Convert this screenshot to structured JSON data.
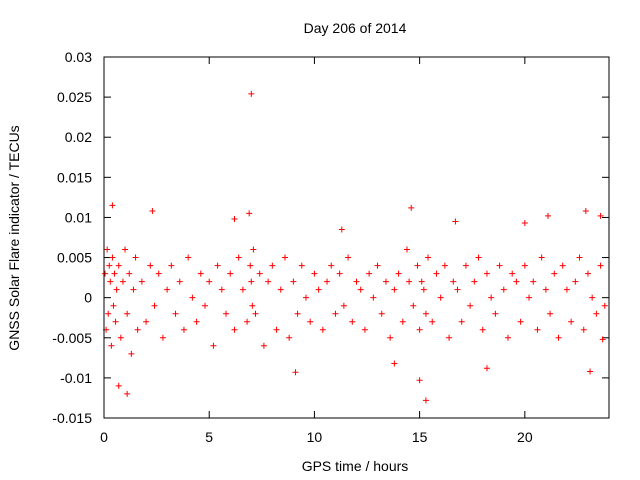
{
  "chart_data": {
    "type": "scatter",
    "title": "Day 206 of 2014",
    "xlabel": "GPS time / hours",
    "ylabel": "GNSS Solar Flare indicator / TECUs",
    "xlim": [
      0,
      24
    ],
    "ylim": [
      -0.015,
      0.03
    ],
    "xticks": [
      0,
      5,
      10,
      15,
      20
    ],
    "xtick_labels": [
      "0",
      "5",
      "10",
      "15",
      "20"
    ],
    "yticks": [
      -0.015,
      -0.01,
      -0.005,
      0,
      0.005,
      0.01,
      0.015,
      0.02,
      0.025,
      0.03
    ],
    "ytick_labels": [
      "-0.015",
      "-0.01",
      "-0.005",
      "0",
      "0.005",
      "0.01",
      "0.015",
      "0.02",
      "0.025",
      "0.03"
    ],
    "grid": false,
    "marker": "plus",
    "color": "#ff0000",
    "series": [
      {
        "name": "GNSS Solar Flare indicator",
        "x": [
          0.05,
          0.1,
          0.15,
          0.2,
          0.25,
          0.3,
          0.35,
          0.4,
          0.45,
          0.5,
          0.55,
          0.6,
          0.7,
          0.8,
          0.9,
          1.0,
          1.1,
          1.2,
          1.3,
          1.4,
          1.5,
          1.6,
          1.8,
          2.0,
          2.2,
          2.4,
          2.6,
          2.8,
          3.0,
          3.2,
          3.4,
          3.6,
          3.8,
          4.0,
          4.2,
          4.4,
          4.6,
          4.8,
          5.0,
          5.2,
          5.4,
          5.6,
          5.8,
          6.0,
          6.2,
          6.4,
          6.6,
          6.8,
          6.95,
          7.0,
          7.05,
          7.1,
          7.2,
          7.4,
          7.6,
          7.8,
          8.0,
          8.2,
          8.4,
          8.6,
          8.8,
          9.0,
          9.2,
          9.4,
          9.6,
          9.8,
          10.0,
          10.2,
          10.4,
          10.6,
          10.8,
          11.0,
          11.2,
          11.4,
          11.6,
          11.8,
          12.0,
          12.2,
          12.4,
          12.6,
          12.8,
          13.0,
          13.2,
          13.4,
          13.6,
          13.8,
          14.0,
          14.2,
          14.4,
          14.5,
          14.7,
          14.9,
          15.0,
          15.1,
          15.2,
          15.3,
          15.4,
          15.6,
          15.8,
          16.0,
          16.2,
          16.4,
          16.6,
          16.8,
          17.0,
          17.2,
          17.4,
          17.6,
          17.8,
          18.0,
          18.2,
          18.4,
          18.6,
          18.8,
          19.0,
          19.2,
          19.4,
          19.6,
          19.8,
          20.0,
          20.2,
          20.4,
          20.6,
          20.8,
          21.0,
          21.2,
          21.4,
          21.6,
          21.8,
          22.0,
          22.2,
          22.4,
          22.6,
          22.8,
          23.0,
          23.2,
          23.4,
          23.6,
          23.8,
          0.4,
          0.7,
          1.1,
          2.3,
          6.2,
          6.9,
          7.0,
          9.1,
          11.3,
          13.8,
          14.6,
          15.0,
          15.3,
          16.7,
          18.2,
          20.0,
          21.1,
          22.9,
          23.1,
          23.6,
          23.7
        ],
        "y": [
          0.003,
          -0.004,
          0.006,
          -0.002,
          0.004,
          0.002,
          -0.006,
          0.005,
          -0.001,
          0.003,
          -0.003,
          0.001,
          0.004,
          -0.005,
          0.002,
          0.006,
          -0.002,
          0.003,
          -0.007,
          0.001,
          0.005,
          -0.004,
          0.002,
          -0.003,
          0.004,
          -0.001,
          0.003,
          -0.005,
          0.001,
          0.004,
          -0.002,
          0.002,
          -0.004,
          0.005,
          0.0,
          -0.003,
          0.003,
          -0.001,
          0.002,
          -0.006,
          0.004,
          0.001,
          -0.002,
          0.003,
          -0.004,
          0.005,
          0.001,
          -0.003,
          0.004,
          0.002,
          -0.001,
          0.006,
          -0.002,
          0.003,
          -0.006,
          0.002,
          0.004,
          -0.004,
          0.001,
          0.005,
          -0.005,
          0.002,
          -0.002,
          0.004,
          0.0,
          -0.003,
          0.003,
          0.001,
          -0.004,
          0.002,
          0.004,
          -0.002,
          0.003,
          -0.001,
          0.005,
          -0.003,
          0.002,
          0.001,
          -0.004,
          0.003,
          0.0,
          0.004,
          -0.002,
          0.002,
          -0.005,
          0.001,
          0.003,
          -0.003,
          0.006,
          0.002,
          -0.001,
          0.004,
          -0.004,
          0.002,
          0.001,
          -0.002,
          0.005,
          -0.003,
          0.003,
          0.0,
          0.004,
          -0.005,
          0.002,
          0.001,
          -0.003,
          0.004,
          -0.001,
          0.002,
          0.005,
          -0.004,
          0.003,
          0.0,
          -0.002,
          0.004,
          0.001,
          -0.005,
          0.003,
          0.002,
          -0.003,
          0.004,
          0.0,
          0.002,
          -0.004,
          0.005,
          0.001,
          -0.002,
          0.003,
          -0.005,
          0.004,
          0.001,
          -0.003,
          0.002,
          0.005,
          -0.004,
          0.003,
          0.0,
          -0.002,
          0.004,
          -0.001,
          0.0115,
          -0.011,
          -0.012,
          0.0108,
          0.0098,
          0.0105,
          0.0254,
          -0.0093,
          0.0085,
          -0.0082,
          0.0112,
          -0.0103,
          -0.0128,
          0.0095,
          -0.0088,
          0.0093,
          0.0102,
          0.0108,
          -0.0092,
          0.0102,
          -0.0052
        ]
      }
    ]
  }
}
